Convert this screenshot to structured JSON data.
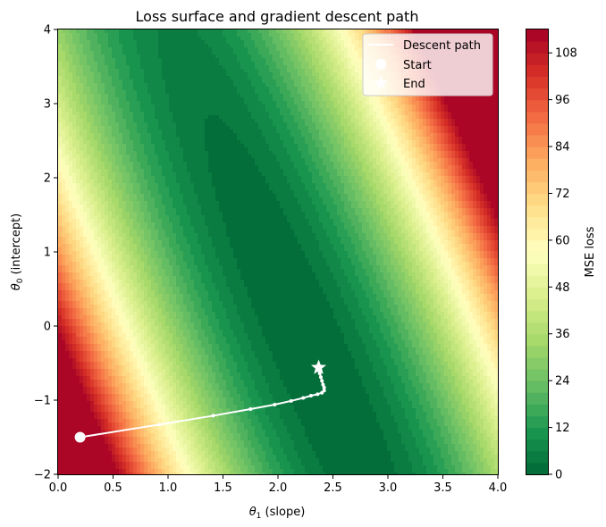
{
  "chart_data": {
    "type": "contour",
    "title": "Loss surface and gradient descent path",
    "xlabel_main": "θ",
    "xlabel_sub": "1",
    "xlabel_rest": " (slope)",
    "ylabel_main": "θ",
    "ylabel_sub": "0",
    "ylabel_rest": " (intercept)",
    "xlim": [
      0,
      4
    ],
    "ylim": [
      -2,
      4
    ],
    "x_ticks": [
      "0.0",
      "0.5",
      "1.0",
      "1.5",
      "2.0",
      "2.5",
      "3.0",
      "3.5",
      "4.0"
    ],
    "y_ticks": [
      "−2",
      "−1",
      "0",
      "1",
      "2",
      "3",
      "4"
    ],
    "colorbar": {
      "label": "MSE loss",
      "colormap": "RdYlGn_r",
      "range": [
        0,
        114
      ],
      "ticks": [
        "0",
        "12",
        "24",
        "36",
        "48",
        "60",
        "72",
        "84",
        "96",
        "108"
      ]
    },
    "legend": {
      "position": "top-right",
      "entries": [
        "Descent path",
        "Start",
        "End"
      ]
    },
    "descent_path": [
      {
        "x": 0.2,
        "y": -1.5
      },
      {
        "x": 0.92,
        "y": -1.33
      },
      {
        "x": 1.41,
        "y": -1.21
      },
      {
        "x": 1.75,
        "y": -1.12
      },
      {
        "x": 1.97,
        "y": -1.06
      },
      {
        "x": 2.12,
        "y": -1.01
      },
      {
        "x": 2.23,
        "y": -0.97
      },
      {
        "x": 2.3,
        "y": -0.94
      },
      {
        "x": 2.36,
        "y": -0.92
      },
      {
        "x": 2.4,
        "y": -0.9
      },
      {
        "x": 2.42,
        "y": -0.87
      },
      {
        "x": 2.42,
        "y": -0.83
      },
      {
        "x": 2.41,
        "y": -0.79
      },
      {
        "x": 2.4,
        "y": -0.74
      },
      {
        "x": 2.39,
        "y": -0.69
      },
      {
        "x": 2.38,
        "y": -0.64
      },
      {
        "x": 2.37,
        "y": -0.6
      },
      {
        "x": 2.37,
        "y": -0.56
      }
    ],
    "start": {
      "x": 0.2,
      "y": -1.5
    },
    "end": {
      "x": 2.37,
      "y": -0.56
    }
  }
}
